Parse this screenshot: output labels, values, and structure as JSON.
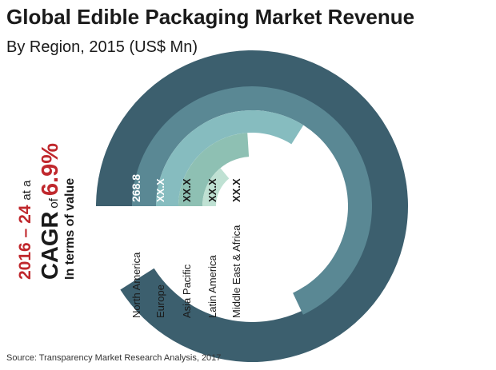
{
  "title": "Global Edible Packaging Market Revenue",
  "subtitle": "By Region, 2015 (US$ Mn)",
  "source": "Source: Transparency Market Research Analysis, 2017",
  "cagr": {
    "period": "2016 – 24",
    "at_a": "at a",
    "label": "CAGR",
    "of": "of",
    "value": "6.9%",
    "terms": "In terms of value"
  },
  "colors": {
    "accent_red": "#c0282d",
    "text_dark": "#1a1a1a"
  },
  "chart_data": {
    "type": "radial-bar",
    "title": "Global Edible Packaging Market Revenue",
    "subtitle": "By Region, 2015 (US$ Mn)",
    "unit": "US$ Mn",
    "series": [
      {
        "name": "North America",
        "value": 268.8,
        "label": "268.8",
        "sweep_fraction": 0.91,
        "color": "#3c5f6e"
      },
      {
        "name": "Europe",
        "value": null,
        "label": "XX.X",
        "sweep_fraction": 0.68,
        "color": "#5a8894"
      },
      {
        "name": "Asia Pacific",
        "value": null,
        "label": "XX.X",
        "sweep_fraction": 0.34,
        "color": "#86bcbf"
      },
      {
        "name": "Latin America",
        "value": null,
        "label": "XX.X",
        "sweep_fraction": 0.24,
        "color": "#8ec0b3"
      },
      {
        "name": "Middle East & Africa",
        "value": null,
        "label": "XX.X",
        "sweep_fraction": 0.14,
        "color": "#bfe1d3"
      }
    ]
  }
}
